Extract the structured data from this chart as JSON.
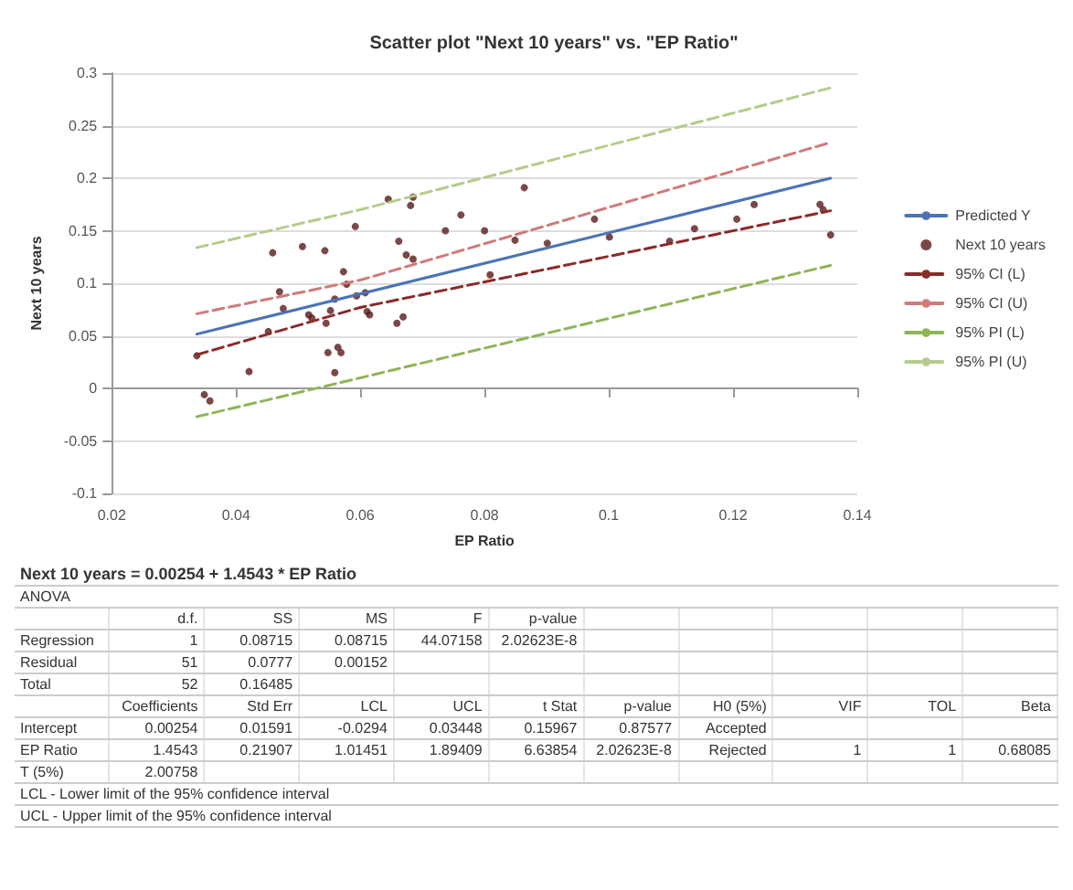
{
  "chart_data": [
    {
      "type": "scatter",
      "title": "Scatter plot \"Next 10 years\" vs. \"EP Ratio\"",
      "xlabel": "EP Ratio",
      "ylabel": "Next 10 years",
      "xlim": [
        0.02,
        0.14
      ],
      "xticks": [
        0.02,
        0.04,
        0.06,
        0.08,
        0.1,
        0.12,
        0.14
      ],
      "ylim": [
        -0.1,
        0.3
      ],
      "yticks": [
        -0.1,
        -0.05,
        0,
        0.05,
        0.1,
        0.15,
        0.2,
        0.25,
        0.3
      ],
      "grid": "y",
      "legend": "right",
      "series": [
        {
          "name": "Predicted Y",
          "type": "line",
          "color": "#4a74b5",
          "marker": "none",
          "line_style": "solid",
          "x": [
            0.0337,
            0.1357
          ],
          "values": [
            0.0516,
            0.2
          ]
        },
        {
          "name": "Next 10 years",
          "type": "scatter",
          "color": "#5a1a1a",
          "marker": "circle",
          "x": [
            0.0337,
            0.0349,
            0.0358,
            0.0421,
            0.0452,
            0.0459,
            0.047,
            0.0476,
            0.0507,
            0.0517,
            0.0522,
            0.0543,
            0.0545,
            0.0548,
            0.0552,
            0.0559,
            0.0559,
            0.0564,
            0.0569,
            0.0573,
            0.0578,
            0.0592,
            0.0594,
            0.0608,
            0.0611,
            0.0615,
            0.0645,
            0.0662,
            0.0659,
            0.0669,
            0.0674,
            0.0685,
            0.0681,
            0.0685,
            0.0737,
            0.0762,
            0.08,
            0.0809,
            0.0849,
            0.0864,
            0.0901,
            0.0977,
            0.1001,
            0.1098,
            0.1138,
            0.1206,
            0.1234,
            0.134,
            0.1345,
            0.1357
          ],
          "values": [
            0.031,
            -0.006,
            -0.012,
            0.016,
            0.054,
            0.129,
            0.092,
            0.076,
            0.135,
            0.07,
            0.067,
            0.131,
            0.062,
            0.034,
            0.074,
            0.085,
            0.015,
            0.039,
            0.034,
            0.111,
            0.099,
            0.154,
            0.088,
            0.091,
            0.073,
            0.07,
            0.18,
            0.14,
            0.062,
            0.068,
            0.127,
            0.123,
            0.174,
            0.182,
            0.15,
            0.165,
            0.15,
            0.108,
            0.141,
            0.191,
            0.138,
            0.161,
            0.144,
            0.14,
            0.152,
            0.161,
            0.175,
            0.175,
            0.17,
            0.146
          ]
        },
        {
          "name": "95% CI (L)",
          "type": "line",
          "color": "#8b2a2a",
          "marker": "none",
          "line_style": "dashed",
          "x": [
            0.0337,
            0.06,
            0.1357
          ],
          "values": [
            0.032,
            0.077,
            0.169
          ]
        },
        {
          "name": "95% CI (U)",
          "type": "line",
          "color": "#d07a7a",
          "marker": "none",
          "line_style": "dashed",
          "x": [
            0.0337,
            0.06,
            0.1357
          ],
          "values": [
            0.071,
            0.103,
            0.234
          ]
        },
        {
          "name": "95% PI (L)",
          "type": "line",
          "color": "#8fb55a",
          "marker": "none",
          "line_style": "dashed",
          "x": [
            0.0337,
            0.06,
            0.1357
          ],
          "values": [
            -0.027,
            0.01,
            0.117
          ]
        },
        {
          "name": "95% PI (U)",
          "type": "line",
          "color": "#b5cc8a",
          "marker": "none",
          "line_style": "dashed",
          "x": [
            0.0337,
            0.06,
            0.1357
          ],
          "values": [
            0.134,
            0.17,
            0.286
          ]
        }
      ]
    },
    {
      "type": "other",
      "annotations": [
        "Next 10 years = 0.00254 + 1.4543 * EP Ratio",
        "ANOVA",
        "\td.f.\tSS\tMS\tF\tp-value",
        "Regression\t1\t0.08715\t0.08715\t44.07158\t2.02623E-8",
        "Residual\t51\t0.0777\t0.00152",
        "Total\t52\t0.16485",
        "\tCoefficients\tStd Err\tLCL\tUCL\tt Stat\tp-value\tH0 (5%)\tVIF\tTOL\tBeta",
        "Intercept\t0.00254\t0.01591\t-0.0294\t0.03448\t0.15967\t0.87577\tAccepted",
        "EP Ratio\t1.4543\t0.21907\t1.01451\t1.89409\t6.63854\t2.02623E-8\tRejected\t1\t1\t0.68085",
        "T (5%)\t2.00758",
        "LCL - Lower limit of the 95% confidence interval",
        "UCL - Upper limit of the 95% confidence interval"
      ]
    }
  ]
}
